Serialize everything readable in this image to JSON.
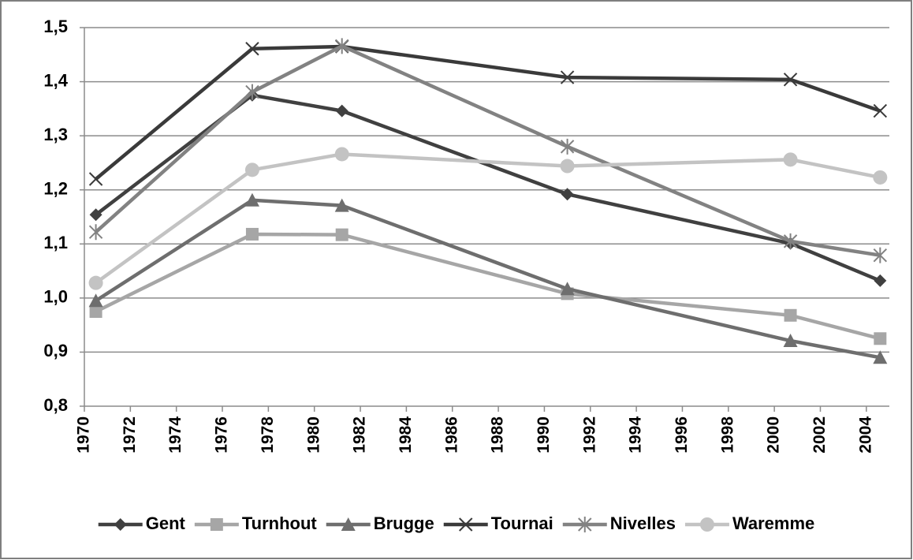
{
  "chart_data": {
    "type": "line",
    "x": [
      1970.5,
      1977.3,
      1981.2,
      1991.0,
      2000.7,
      2004.6
    ],
    "series": [
      {
        "name": "Gent",
        "color": "#404040",
        "marker": "diamond",
        "values": [
          1.154,
          1.375,
          1.346,
          1.192,
          1.101,
          1.032
        ]
      },
      {
        "name": "Turnhout",
        "color": "#a6a6a6",
        "marker": "square",
        "values": [
          0.975,
          1.118,
          1.117,
          1.008,
          0.968,
          0.925
        ]
      },
      {
        "name": "Brugge",
        "color": "#6e6e6e",
        "marker": "triangle",
        "values": [
          0.995,
          1.181,
          1.171,
          1.017,
          0.921,
          0.89
        ]
      },
      {
        "name": "Tournai",
        "color": "#3a3a3a",
        "marker": "x",
        "values": [
          1.22,
          1.461,
          1.465,
          1.408,
          1.404,
          1.346
        ]
      },
      {
        "name": "Nivelles",
        "color": "#828282",
        "marker": "star",
        "values": [
          1.122,
          1.381,
          1.466,
          1.28,
          1.105,
          1.079
        ]
      },
      {
        "name": "Waremme",
        "color": "#c3c3c3",
        "marker": "circle",
        "values": [
          1.028,
          1.237,
          1.266,
          1.244,
          1.256,
          1.223
        ]
      }
    ],
    "xlim": [
      1970,
      2005
    ],
    "xticks": [
      1970,
      1972,
      1974,
      1976,
      1978,
      1980,
      1982,
      1984,
      1986,
      1988,
      1990,
      1992,
      1994,
      1996,
      1998,
      2000,
      2002,
      2004
    ],
    "ylim": [
      0.8,
      1.5
    ],
    "yticks": [
      {
        "value": 0.8,
        "label": "0,8"
      },
      {
        "value": 0.9,
        "label": "0,9"
      },
      {
        "value": 1.0,
        "label": "1,0"
      },
      {
        "value": 1.1,
        "label": "1,1"
      },
      {
        "value": 1.2,
        "label": "1,2"
      },
      {
        "value": 1.3,
        "label": "1,3"
      },
      {
        "value": 1.4,
        "label": "1,4"
      },
      {
        "value": 1.5,
        "label": "1,5"
      }
    ],
    "grid": true,
    "legend": "bottom"
  }
}
